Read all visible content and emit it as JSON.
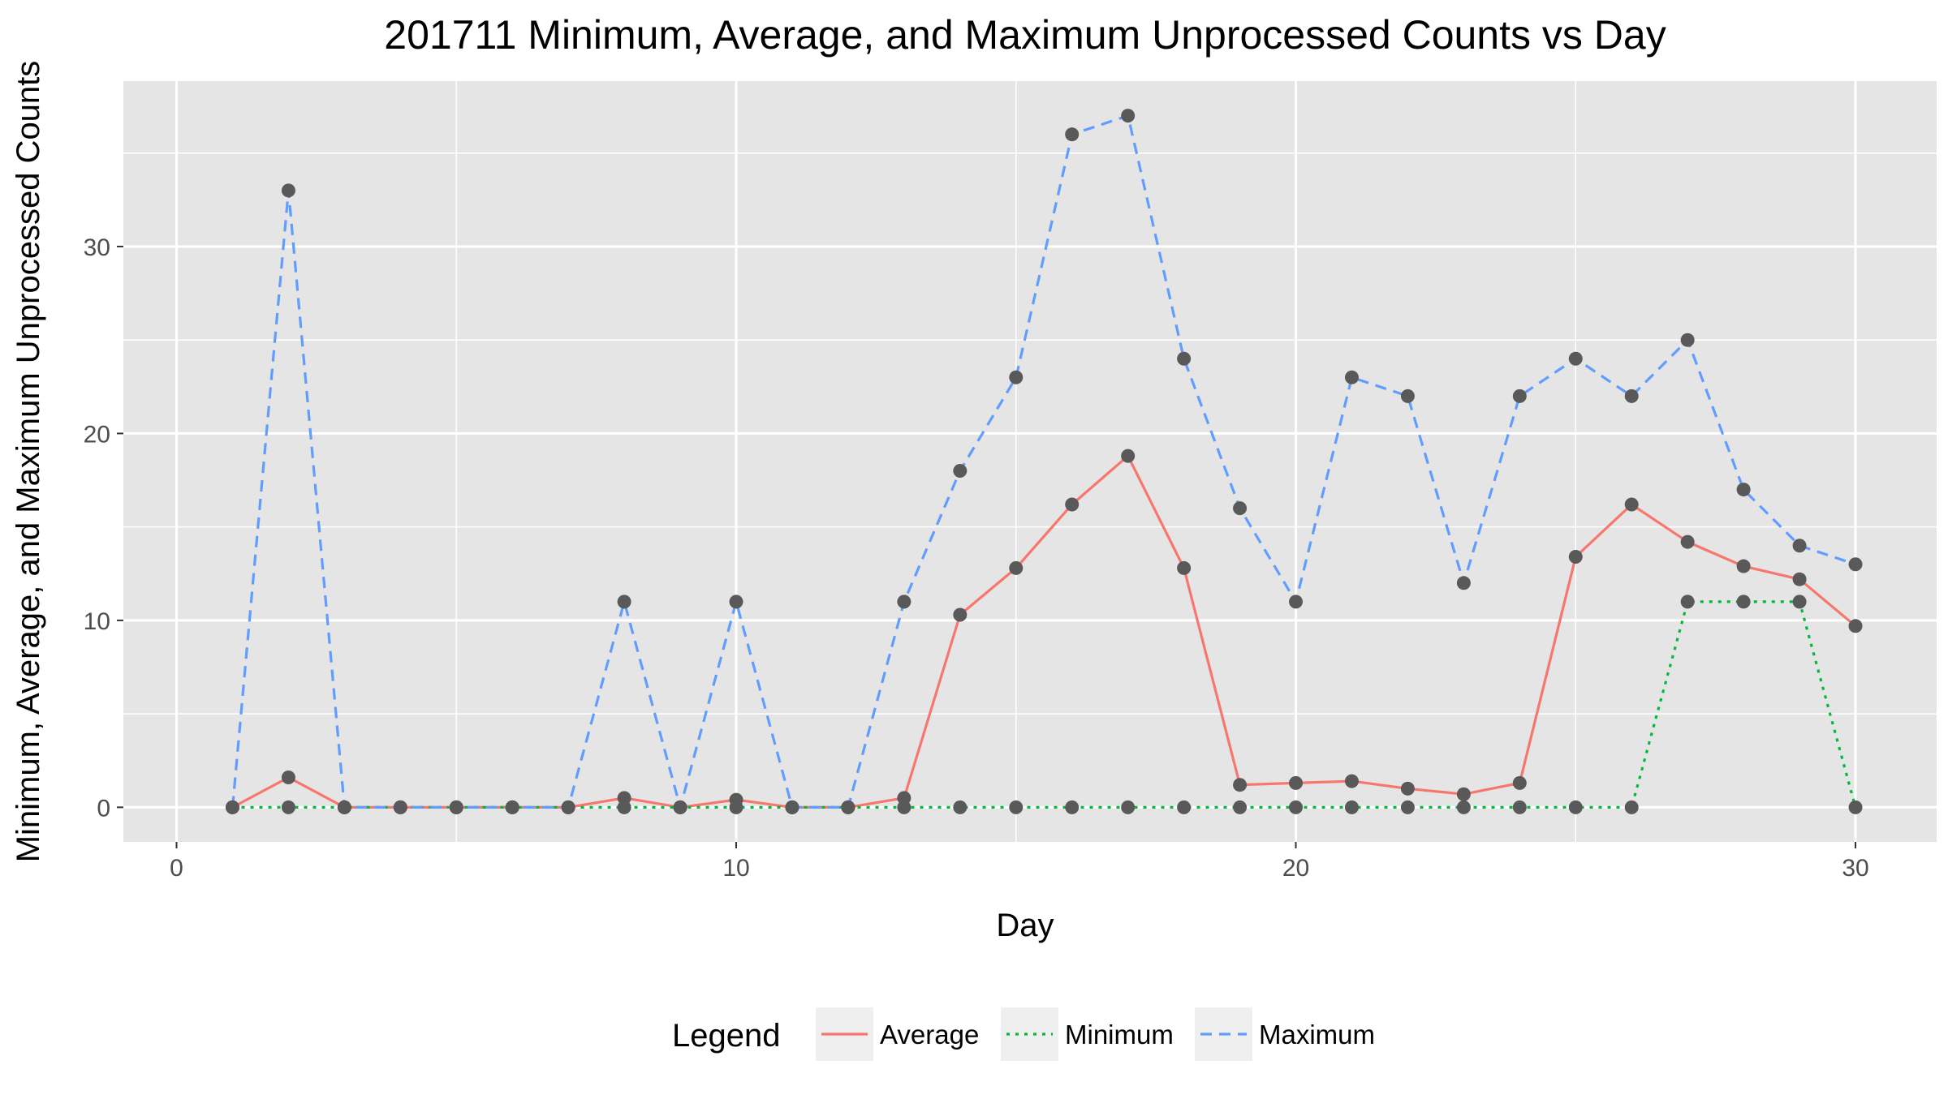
{
  "chart_data": {
    "type": "line",
    "title": "201711 Minimum, Average, and Maximum Unprocessed Counts vs Day",
    "xlabel": "Day",
    "ylabel": "Minimum, Average, and Maximum Unprocessed Counts",
    "xlim": [
      -0.95,
      31.45
    ],
    "ylim": [
      -1.85,
      38.85
    ],
    "xticks": [
      0,
      10,
      20,
      30
    ],
    "yticks": [
      0,
      10,
      20,
      30
    ],
    "grid": true,
    "legend": {
      "title": "Legend",
      "placement": "bottom"
    },
    "x": [
      1,
      2,
      3,
      4,
      5,
      6,
      7,
      8,
      9,
      10,
      11,
      12,
      13,
      14,
      15,
      16,
      17,
      18,
      19,
      20,
      21,
      22,
      23,
      24,
      25,
      26,
      27,
      28,
      29,
      30
    ],
    "series": [
      {
        "name": "Average",
        "color": "#F8766D",
        "dash": "solid",
        "values": [
          0,
          1.6,
          0,
          0,
          0,
          0,
          0,
          0.5,
          0,
          0.4,
          0,
          0,
          0.5,
          10.3,
          12.8,
          16.2,
          18.8,
          12.8,
          1.2,
          1.3,
          1.4,
          1.0,
          0.7,
          1.3,
          13.4,
          16.2,
          14.2,
          12.9,
          12.2,
          9.7
        ]
      },
      {
        "name": "Minimum",
        "color": "#00BA38",
        "dash": "dotted",
        "values": [
          0,
          0,
          0,
          0,
          0,
          0,
          0,
          0,
          0,
          0,
          0,
          0,
          0,
          0,
          0,
          0,
          0,
          0,
          0,
          0,
          0,
          0,
          0,
          0,
          0,
          0,
          11,
          11,
          11,
          0
        ]
      },
      {
        "name": "Maximum",
        "color": "#619CFF",
        "dash": "dashed",
        "values": [
          0,
          33,
          0,
          0,
          0,
          0,
          0,
          11,
          0,
          11,
          0,
          0,
          11,
          18,
          23,
          36,
          37,
          24,
          16,
          11,
          23,
          22,
          12,
          22,
          24,
          22,
          25,
          17,
          14,
          13
        ]
      }
    ],
    "point_color": "#595959",
    "panel_background": "#E5E5E5",
    "grid_color": "#FFFFFF"
  }
}
